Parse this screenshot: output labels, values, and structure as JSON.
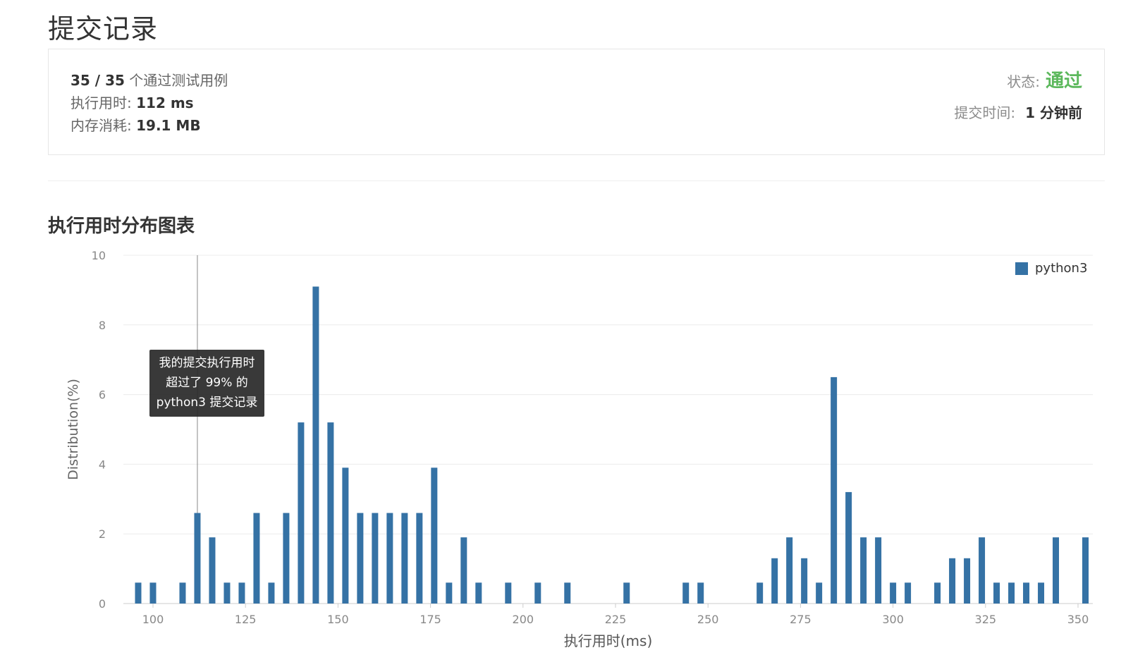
{
  "page": {
    "title": "提交记录"
  },
  "result": {
    "passed_count": "35 / 35",
    "passed_suffix": "个通过测试用例",
    "runtime_label": "执行用时:",
    "runtime_value": "112 ms",
    "memory_label": "内存消耗:",
    "memory_value": "19.1 MB",
    "status_label": "状态:",
    "status_value": "通过",
    "submit_time_label": "提交时间:",
    "submit_time_value": "1 分钟前"
  },
  "colors": {
    "accent_green": "#5cb85c",
    "bar_blue": "#3572a5"
  },
  "chart_section": {
    "title": "执行用时分布图表"
  },
  "tooltip": {
    "line1": "我的提交执行用时",
    "line2": "超过了 99% 的",
    "line3": "python3 提交记录"
  },
  "chart_data": {
    "type": "bar",
    "title": "",
    "xlabel": "执行用时(ms)",
    "ylabel": "Distribution(%)",
    "xlim": [
      92,
      354
    ],
    "ylim": [
      0,
      10
    ],
    "x_ticks": [
      "100",
      "125",
      "150",
      "175",
      "200",
      "225",
      "250",
      "275",
      "300",
      "325",
      "350"
    ],
    "x_tick_values": [
      100,
      125,
      150,
      175,
      200,
      225,
      250,
      275,
      300,
      325,
      350
    ],
    "y_ticks": [
      "0",
      "2",
      "4",
      "6",
      "8",
      "10"
    ],
    "y_tick_values": [
      0,
      2,
      4,
      6,
      8,
      10
    ],
    "grid": true,
    "legend_position": "top-right",
    "highlight_x": 112,
    "series": [
      {
        "name": "python3",
        "x": [
          96,
          100,
          108,
          112,
          116,
          120,
          124,
          128,
          132,
          136,
          140,
          144,
          148,
          152,
          156,
          160,
          164,
          168,
          172,
          176,
          180,
          184,
          188,
          196,
          204,
          212,
          228,
          244,
          248,
          264,
          268,
          272,
          276,
          280,
          284,
          288,
          292,
          296,
          300,
          304,
          312,
          316,
          320,
          324,
          328,
          332,
          336,
          340,
          344,
          352
        ],
        "values": [
          0.6,
          0.6,
          0.6,
          2.6,
          1.9,
          0.6,
          0.6,
          2.6,
          0.6,
          2.6,
          5.2,
          9.1,
          5.2,
          3.9,
          2.6,
          2.6,
          2.6,
          2.6,
          2.6,
          3.9,
          0.6,
          1.9,
          0.6,
          0.6,
          0.6,
          0.6,
          0.6,
          0.6,
          0.6,
          0.6,
          1.3,
          1.9,
          1.3,
          0.6,
          6.5,
          3.2,
          1.9,
          1.9,
          0.6,
          0.6,
          0.6,
          1.3,
          1.3,
          1.9,
          0.6,
          0.6,
          0.6,
          0.6,
          1.9,
          1.9
        ]
      }
    ]
  }
}
